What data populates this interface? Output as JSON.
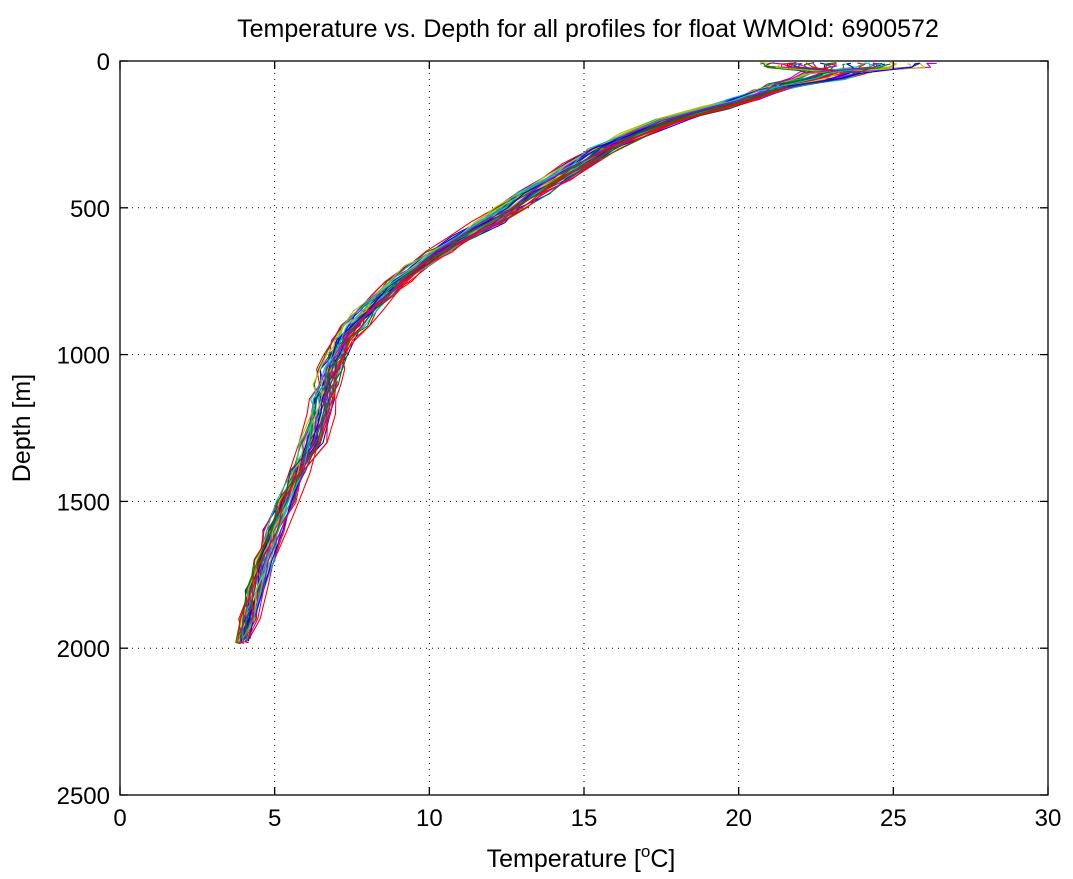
{
  "chart_data": {
    "type": "line",
    "title": "Temperature vs. Depth for all profiles for float WMOId: 6900572",
    "xlabel_main": "Temperature [",
    "xlabel_sup": "o",
    "xlabel_end": "C]",
    "ylabel": "Depth [m]",
    "xlim": [
      0,
      30
    ],
    "ylim": [
      0,
      2500
    ],
    "y_reversed": true,
    "grid": true,
    "x_ticks": [
      0,
      5,
      10,
      15,
      20,
      25,
      30
    ],
    "y_ticks": [
      0,
      500,
      1000,
      1500,
      2000,
      2500
    ],
    "x_tick_labels": [
      "0",
      "5",
      "10",
      "15",
      "20",
      "25",
      "30"
    ],
    "y_tick_labels": [
      "0",
      "500",
      "1000",
      "1500",
      "2000",
      "2500"
    ],
    "profile_count": 40,
    "palette": [
      "#0000ff",
      "#008000",
      "#ff0000",
      "#00bfbf",
      "#bf00bf",
      "#bfbf00",
      "#404040"
    ],
    "mean_profile": {
      "depth": [
        10,
        20,
        40,
        60,
        80,
        100,
        130,
        160,
        200,
        250,
        300,
        350,
        400,
        450,
        500,
        550,
        600,
        650,
        700,
        750,
        800,
        850,
        900,
        950,
        1000,
        1050,
        1100,
        1150,
        1200,
        1300,
        1400,
        1500,
        1600,
        1700,
        1800,
        1900,
        1980
      ],
      "temperature": [
        22.8,
        23.4,
        23.1,
        22.6,
        21.6,
        21.0,
        20.2,
        19.2,
        17.8,
        16.6,
        15.6,
        14.9,
        14.1,
        13.3,
        12.6,
        11.9,
        11.1,
        10.3,
        9.6,
        9.0,
        8.5,
        8.0,
        7.6,
        7.2,
        7.0,
        6.8,
        6.7,
        6.6,
        6.5,
        6.2,
        5.8,
        5.4,
        5.0,
        4.7,
        4.4,
        4.2,
        4.0
      ]
    }
  }
}
